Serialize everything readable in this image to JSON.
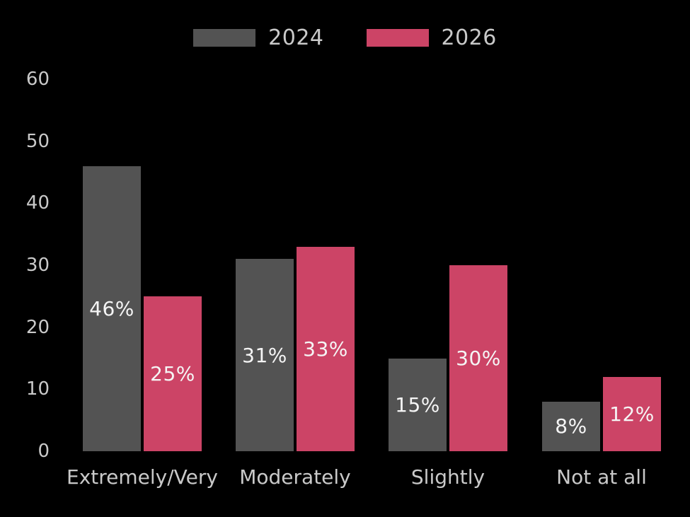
{
  "background_color": "#000000",
  "axis_text_color": "#c9c9c9",
  "bar_label_color": "#f5f5f5",
  "legend": {
    "position": "top-center",
    "items": [
      {
        "label": "2024",
        "color": "#535353"
      },
      {
        "label": "2026",
        "color": "#cc4466"
      }
    ]
  },
  "chart_data": {
    "type": "bar",
    "grouped": true,
    "title": "",
    "xlabel": "",
    "ylabel": "",
    "categories": [
      "Extremely/Very",
      "Moderately",
      "Slightly",
      "Not at all"
    ],
    "series": [
      {
        "name": "2024",
        "color": "#535353",
        "values": [
          46,
          31,
          15,
          8
        ],
        "value_labels": [
          "46%",
          "31%",
          "15%",
          "8%"
        ]
      },
      {
        "name": "2026",
        "color": "#cc4466",
        "values": [
          25,
          33,
          30,
          12
        ],
        "value_labels": [
          "25%",
          "33%",
          "30%",
          "12%"
        ]
      }
    ],
    "ylim": [
      0,
      60
    ],
    "yticks": [
      0,
      10,
      20,
      30,
      40,
      50,
      60
    ],
    "grid": false,
    "legend_position": "top",
    "value_label_position": "inside-center"
  }
}
